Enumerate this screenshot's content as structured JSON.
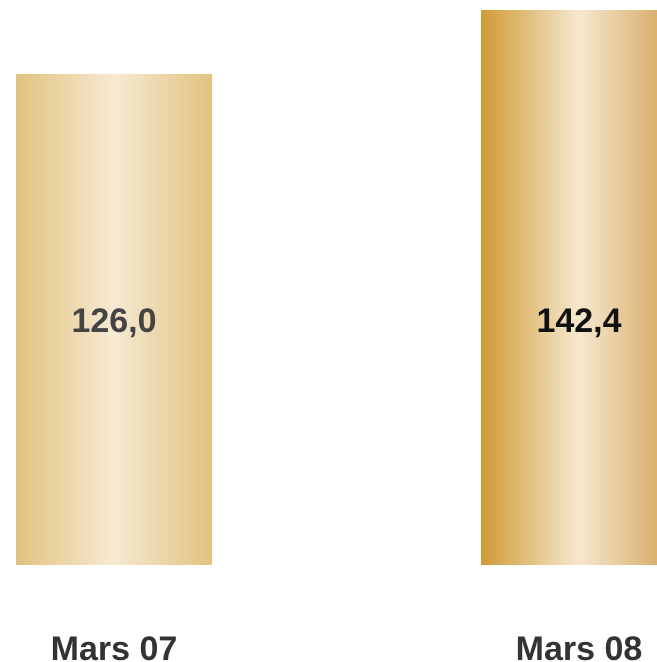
{
  "chart_data": {
    "type": "bar",
    "categories": [
      "Mars 07",
      "Mars 08"
    ],
    "values": [
      126.0,
      142.4
    ],
    "value_labels": [
      "126,0",
      "142,4"
    ],
    "title": "",
    "xlabel": "",
    "ylabel": "",
    "ylim": [
      0,
      142.4
    ],
    "grid": false,
    "legend": "none",
    "colors": {
      "bar_1_edge": "#e2c27f",
      "bar_1_center": "#f6ead2",
      "bar_2_edge_left": "#d09a35",
      "bar_2_edge_right": "#d4a258",
      "bar_2_center": "#f5e8cf",
      "label_1_color": "#444444",
      "label_2_color": "#111111",
      "category_color": "#333333"
    }
  }
}
